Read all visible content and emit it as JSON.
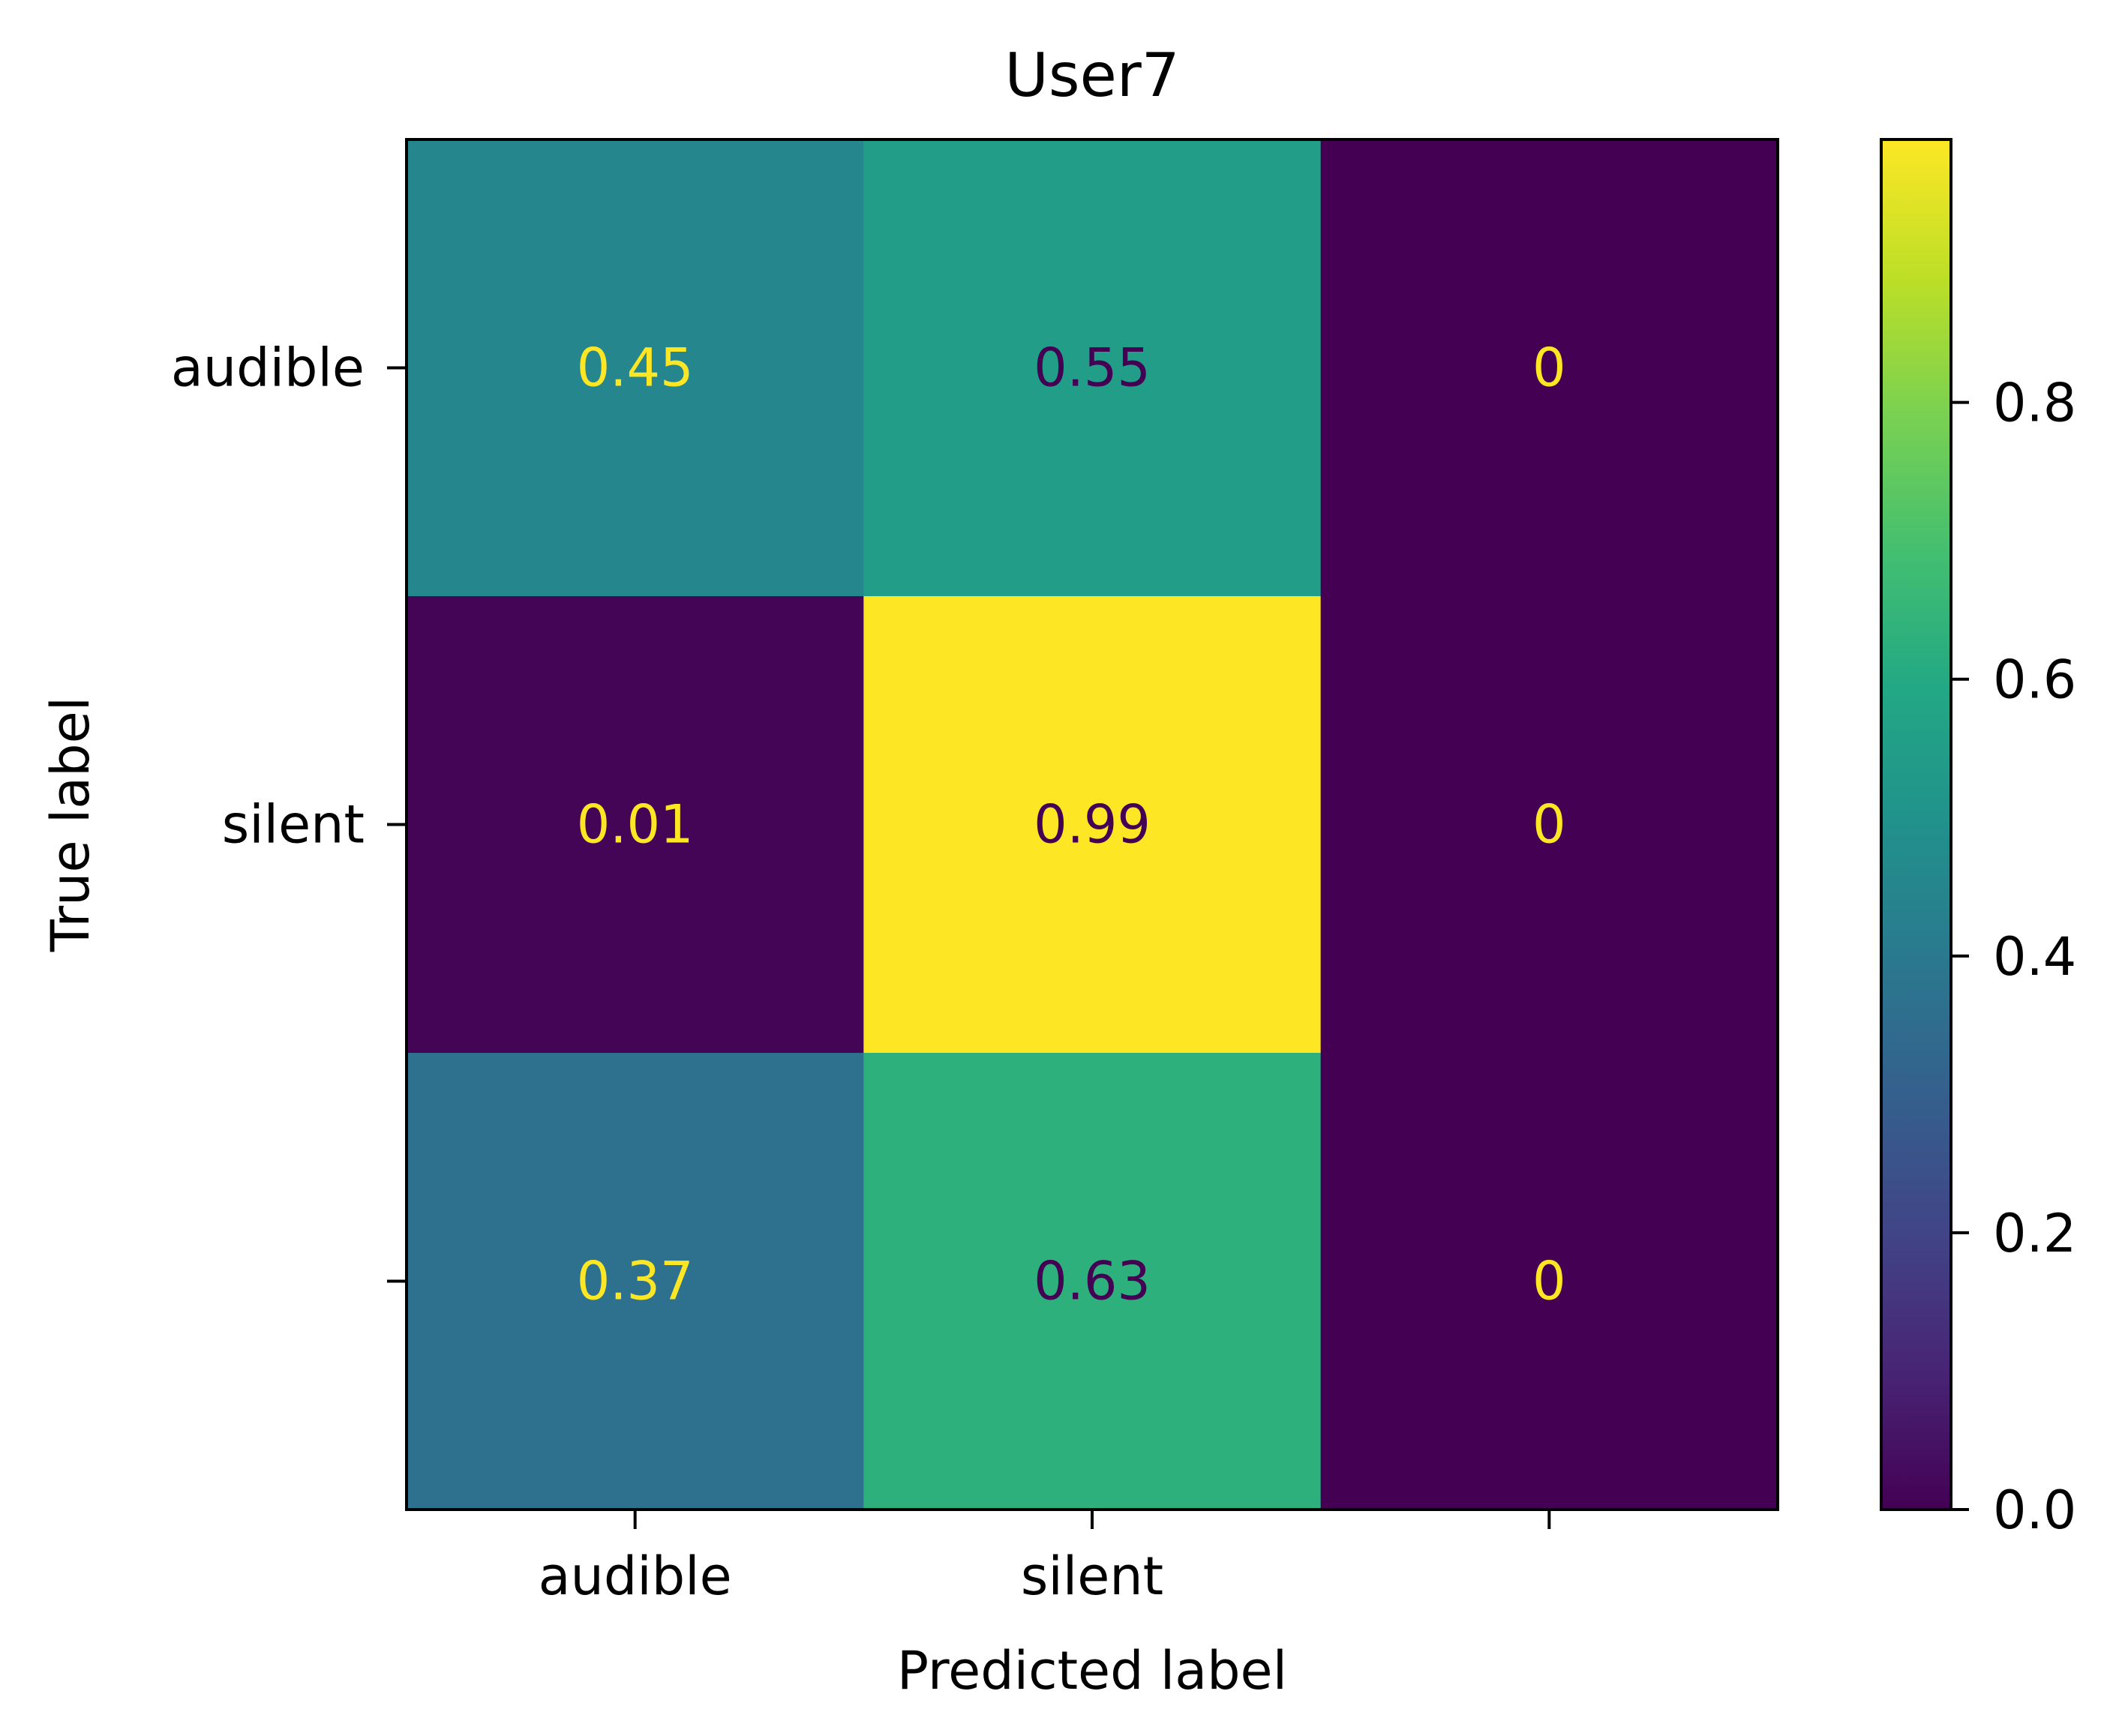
{
  "chart_data": {
    "type": "heatmap",
    "title": "User7",
    "xlabel": "Predicted label",
    "ylabel": "True label",
    "x_categories": [
      "audible",
      "silent",
      ""
    ],
    "y_categories": [
      "audible",
      "silent",
      ""
    ],
    "values": [
      [
        0.45,
        0.55,
        0
      ],
      [
        0.01,
        0.99,
        0
      ],
      [
        0.37,
        0.63,
        0
      ]
    ],
    "cell_labels": [
      [
        "0.45",
        "0.55",
        "0"
      ],
      [
        "0.01",
        "0.99",
        "0"
      ],
      [
        "0.37",
        "0.63",
        "0"
      ]
    ],
    "colormap": "viridis",
    "colorbar": {
      "range": [
        0,
        0.99
      ],
      "ticks": [
        0.0,
        0.2,
        0.4,
        0.6,
        0.8
      ],
      "tick_labels": [
        "0.0",
        "0.2",
        "0.4",
        "0.6",
        "0.8"
      ]
    },
    "text_color_low": "#fde725",
    "text_color_high": "#440154",
    "grid": false
  }
}
